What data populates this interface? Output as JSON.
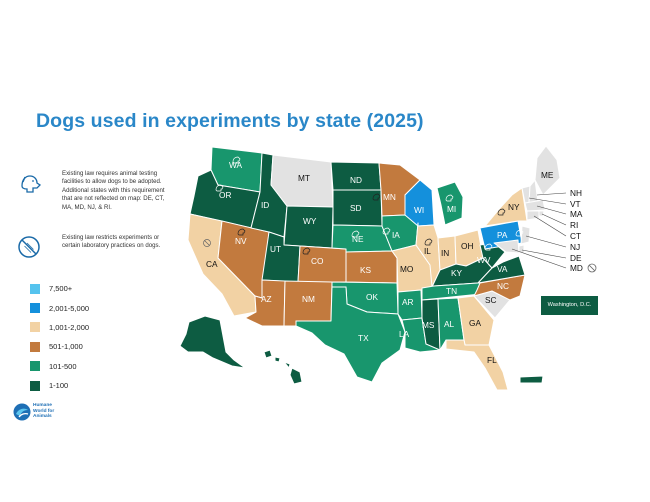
{
  "title": "Dogs used in experiments by state (2025)",
  "notes": {
    "adoption": "Existing law requires animal testing facilities to allow dogs to be adopted. Additional states with this requirement that are not reflected on map: DE, CT, MA, MD, NJ, & RI.",
    "restriction": "Existing law restricts experiments or certain laboratory practices on dogs."
  },
  "legend": [
    {
      "label": "7,500+",
      "color": "#55c3ee"
    },
    {
      "label": "2,001-5,000",
      "color": "#1490dc"
    },
    {
      "label": "1,001-2,000",
      "color": "#f2d2a4"
    },
    {
      "label": "501-1,000",
      "color": "#c27a3e"
    },
    {
      "label": "101-500",
      "color": "#18966d"
    },
    {
      "label": "1-100",
      "color": "#0d5c42"
    }
  ],
  "no_data_color": "#e2e2e2",
  "northeast_labels": [
    "NH",
    "VT",
    "MA",
    "RI",
    "CT",
    "NJ",
    "DE",
    "MD"
  ],
  "dc_label": "Washington, D.C.",
  "logo_text": [
    "Humane",
    "World for",
    "Animals"
  ],
  "states": {
    "WA": {
      "label": "WA",
      "color": "#18966d"
    },
    "OR": {
      "label": "OR",
      "color": "#0d5c42"
    },
    "CA": {
      "label": "CA",
      "color": "#f2d2a4"
    },
    "NV": {
      "label": "NV",
      "color": "#c27a3e"
    },
    "ID": {
      "label": "ID",
      "color": "#0d5c42"
    },
    "MT": {
      "label": "MT",
      "color": "#e2e2e2"
    },
    "WY": {
      "label": "WY",
      "color": "#0d5c42"
    },
    "UT": {
      "label": "UT",
      "color": "#0d5c42"
    },
    "CO": {
      "label": "CO",
      "color": "#c27a3e"
    },
    "AZ": {
      "label": "AZ",
      "color": "#c27a3e"
    },
    "NM": {
      "label": "NM",
      "color": "#c27a3e"
    },
    "ND": {
      "label": "ND",
      "color": "#0d5c42"
    },
    "SD": {
      "label": "SD",
      "color": "#0d5c42"
    },
    "NE": {
      "label": "NE",
      "color": "#18966d"
    },
    "KS": {
      "label": "KS",
      "color": "#c27a3e"
    },
    "OK": {
      "label": "OK",
      "color": "#18966d"
    },
    "TX": {
      "label": "TX",
      "color": "#18966d"
    },
    "MN": {
      "label": "MN",
      "color": "#c27a3e"
    },
    "IA": {
      "label": "IA",
      "color": "#18966d"
    },
    "MO": {
      "label": "MO",
      "color": "#f2d2a4"
    },
    "AR": {
      "label": "AR",
      "color": "#18966d"
    },
    "LA": {
      "label": "LA",
      "color": "#18966d"
    },
    "WI": {
      "label": "WI",
      "color": "#1490dc"
    },
    "IL": {
      "label": "IL",
      "color": "#f2d2a4"
    },
    "MI": {
      "label": "MI",
      "color": "#18966d"
    },
    "IN": {
      "label": "IN",
      "color": "#f2d2a4"
    },
    "OH": {
      "label": "OH",
      "color": "#f2d2a4"
    },
    "KY": {
      "label": "KY",
      "color": "#0d5c42"
    },
    "TN": {
      "label": "TN",
      "color": "#18966d"
    },
    "MS": {
      "label": "MS",
      "color": "#0d5c42"
    },
    "AL": {
      "label": "AL",
      "color": "#18966d"
    },
    "GA": {
      "label": "GA",
      "color": "#f2d2a4"
    },
    "FL": {
      "label": "FL",
      "color": "#f2d2a4"
    },
    "SC": {
      "label": "SC",
      "color": "#e2e2e2"
    },
    "NC": {
      "label": "NC",
      "color": "#c27a3e"
    },
    "VA": {
      "label": "VA",
      "color": "#0d5c42"
    },
    "WV": {
      "label": "WV",
      "color": "#0d5c42"
    },
    "PA": {
      "label": "PA",
      "color": "#1490dc"
    },
    "NY": {
      "label": "NY",
      "color": "#f2d2a4"
    },
    "ME": {
      "label": "ME",
      "color": "#e2e2e2"
    },
    "AK": {
      "label": "AK",
      "color": "#0d5c42"
    },
    "HI": {
      "label": "HI",
      "color": "#0d5c42"
    },
    "PR": {
      "label": "PR",
      "color": "#0d5c42"
    }
  }
}
